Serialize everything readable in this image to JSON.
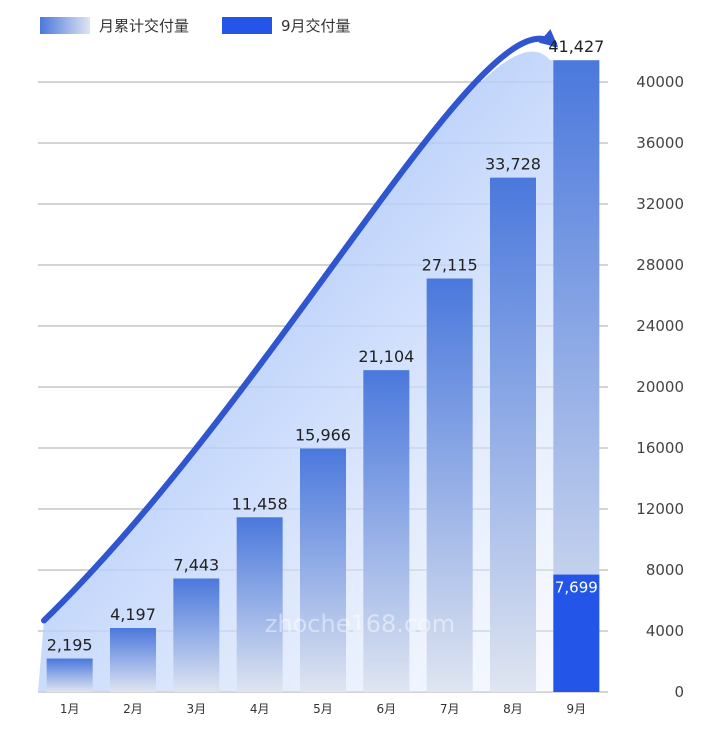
{
  "chart_data": {
    "type": "bar",
    "categories": [
      "1月",
      "2月",
      "3月",
      "4月",
      "5月",
      "6月",
      "7月",
      "8月",
      "9月"
    ],
    "series": [
      {
        "name": "月累计交付量",
        "values": [
          2195,
          4197,
          7443,
          11458,
          15966,
          21104,
          27115,
          33728,
          41427
        ]
      },
      {
        "name": "9月交付量",
        "values": [
          null,
          null,
          null,
          null,
          null,
          null,
          null,
          null,
          7699
        ]
      }
    ],
    "data_labels": [
      "2,195",
      "4,197",
      "7,443",
      "11,458",
      "15,966",
      "21,104",
      "27,115",
      "33,728",
      "41,427"
    ],
    "highlight_label": "7,699",
    "y_ticks": [
      0,
      4000,
      8000,
      12000,
      16000,
      20000,
      24000,
      28000,
      32000,
      36000,
      40000
    ],
    "ylim": [
      0,
      40000
    ],
    "y_axis_position": "right",
    "grid": true,
    "legend_position": "top-left",
    "watermark": "zhoche168.com",
    "colors": {
      "cumulative_top": "#4a78dc",
      "cumulative_bottom": "#dfe5f1",
      "highlight": "#2356e8",
      "trend": "#2f56cf",
      "grid": "#a8a8a8"
    }
  }
}
